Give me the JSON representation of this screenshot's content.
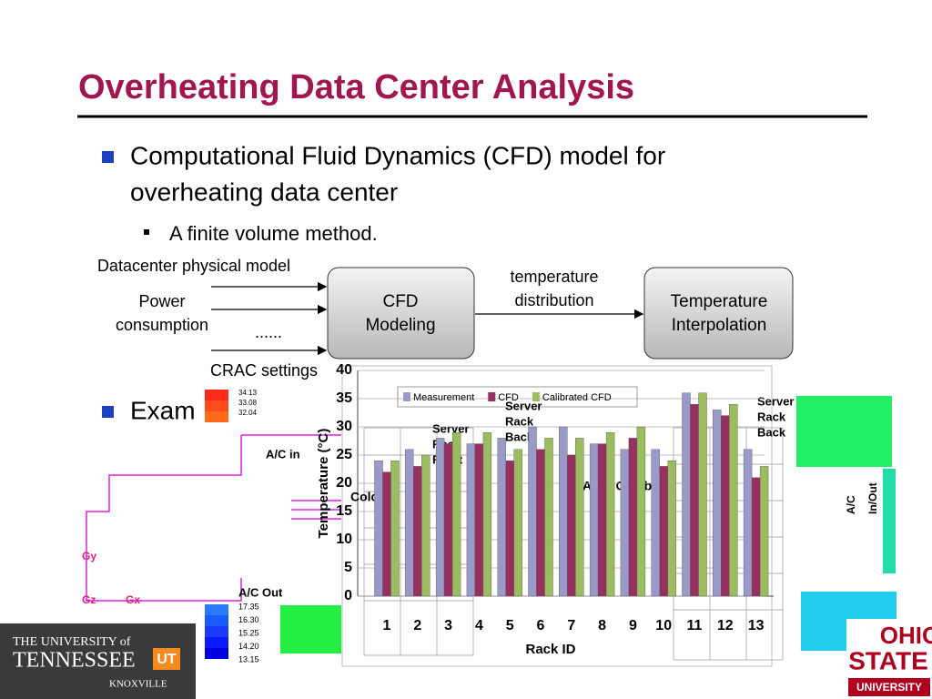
{
  "title": "Overheating Data Center Analysis",
  "bullet1": [
    "Computational Fluid Dynamics (CFD) model for",
    "overheating data center"
  ],
  "sub_bullet": "A finite volume method.",
  "bullet2": "Exam",
  "diagram": {
    "inputs": [
      [
        "Datacenter physical model"
      ],
      [
        "Power",
        "consumption"
      ],
      [
        "......"
      ],
      [
        "CRAC settings"
      ]
    ],
    "nodes": [
      {
        "label": [
          "CFD",
          "Modeling"
        ]
      },
      {
        "label": [
          "Temperature",
          "Interpolation"
        ]
      }
    ],
    "edge_label": [
      "temperature",
      "distribution"
    ]
  },
  "background": {
    "colorbar_top": [
      "34.13",
      "33.08",
      "32.04"
    ],
    "colorbar_bottom": [
      "17.35",
      "16.30",
      "15.25",
      "14.20",
      "13.15"
    ],
    "labels": [
      "A/C in",
      "A/C Out",
      "Gy",
      "Gz",
      "Gx",
      "Cold Air",
      "After Gambit",
      "A/C",
      "In/Out"
    ],
    "rack_front": [
      "Server",
      "Rack",
      "Front"
    ],
    "rack_back": [
      "Server",
      "Rack",
      "Back"
    ]
  },
  "logos": {
    "left": {
      "line1": "THE UNIVERSITY of",
      "line2": "TENNESSEE",
      "badge": "UT",
      "line3": "KNOXVILLE"
    },
    "right": {
      "line1": "OHIO",
      "line2": "STATE",
      "line3": "UNIVERSITY"
    }
  },
  "chart_data": {
    "type": "bar",
    "x_label": "Rack ID",
    "y_label": "Temperature (°C)",
    "categories": [
      "1",
      "2",
      "3",
      "4",
      "5",
      "6",
      "7",
      "8",
      "9",
      "10",
      "11",
      "12",
      "13"
    ],
    "series": [
      {
        "name": "Measurement",
        "color": "#9a9ac8",
        "values": [
          24,
          26,
          28,
          27,
          28,
          30,
          30,
          27,
          26,
          26,
          36,
          33,
          26
        ]
      },
      {
        "name": "CFD",
        "color": "#973060",
        "values": [
          22,
          23,
          27,
          27,
          24,
          26,
          25,
          27,
          28,
          23,
          34,
          32,
          21
        ]
      },
      {
        "name": "Calibrated CFD",
        "color": "#9cbc60",
        "values": [
          24,
          25,
          29,
          29,
          26,
          28,
          28,
          29,
          30,
          24,
          36,
          34,
          23
        ]
      }
    ],
    "ylim": [
      0,
      40
    ],
    "yticks": [
      0,
      5,
      10,
      15,
      20,
      25,
      30,
      35,
      40
    ],
    "grid": true,
    "legend": "top"
  }
}
